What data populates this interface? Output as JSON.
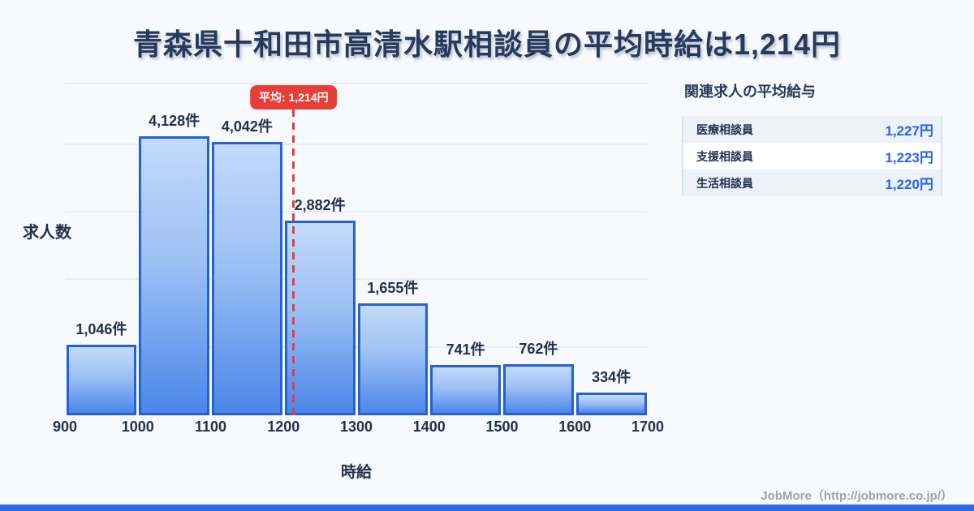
{
  "page": {
    "title": "青森県十和田市高清水駅相談員の平均時給は1,214円"
  },
  "chart_data": {
    "type": "bar",
    "title": "青森県十和田市高清水駅相談員の平均時給は1,214円",
    "xlabel": "時給",
    "ylabel": "求人数",
    "xlim": [
      900,
      1700
    ],
    "ylim": [
      0,
      4900
    ],
    "grid_interval": 1000,
    "grid": true,
    "x_ticks": [
      900,
      1000,
      1100,
      1200,
      1300,
      1400,
      1500,
      1600,
      1700
    ],
    "bins": [
      {
        "range": [
          900,
          1000
        ],
        "count": 1046,
        "label": "1,046件"
      },
      {
        "range": [
          1000,
          1100
        ],
        "count": 4128,
        "label": "4,128件"
      },
      {
        "range": [
          1100,
          1200
        ],
        "count": 4042,
        "label": "4,042件"
      },
      {
        "range": [
          1200,
          1300
        ],
        "count": 2882,
        "label": "2,882件"
      },
      {
        "range": [
          1300,
          1400
        ],
        "count": 1655,
        "label": "1,655件"
      },
      {
        "range": [
          1400,
          1500
        ],
        "count": 741,
        "label": "741件"
      },
      {
        "range": [
          1500,
          1600
        ],
        "count": 762,
        "label": "762件"
      },
      {
        "range": [
          1600,
          1700
        ],
        "count": 334,
        "label": "334件"
      }
    ],
    "average": {
      "value": 1214,
      "label": "平均: 1,214円"
    }
  },
  "related_panel": {
    "title": "関連求人の平均給与",
    "rows": [
      {
        "label": "医療相談員",
        "value": "1,227円"
      },
      {
        "label": "支援相談員",
        "value": "1,223円"
      },
      {
        "label": "生活相談員",
        "value": "1,220円"
      }
    ]
  },
  "footer": {
    "credit": "JobMore（http://jobmore.co.jp/）"
  },
  "colors": {
    "background": "#f7f9fc",
    "bar_border": "#2361d6",
    "bar_gradient_top": "#c3dafa",
    "bar_gradient_bottom": "#4c86e9",
    "average_red": "#e73f38",
    "value_blue": "#2563eb",
    "text_dark": "#22304f",
    "grid": "#e7ebf3",
    "brand_bar": "#2b6ce4"
  }
}
